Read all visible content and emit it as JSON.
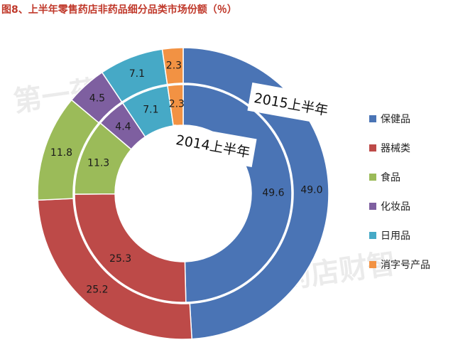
{
  "title": "图8、上半年零售药店非药品细分品类市场份额（％）",
  "watermark": "第一药店财智",
  "chart_data": {
    "type": "pie",
    "variant": "double-donut",
    "unit": "%",
    "categories": [
      "保健品",
      "器械类",
      "食品",
      "化妆品",
      "日用品",
      "消字号产品"
    ],
    "colors": [
      "#4a74b5",
      "#bd4a48",
      "#9bbb59",
      "#7e5fa0",
      "#46a9c6",
      "#f29243"
    ],
    "series": [
      {
        "name": "2015上半年",
        "ring": "outer",
        "values": [
          49.0,
          25.2,
          11.8,
          4.5,
          7.1,
          2.3
        ],
        "labels": [
          "49.0",
          "25.2",
          "11.8",
          "4.5",
          "7.1",
          "2.3"
        ]
      },
      {
        "name": "2014上半年",
        "ring": "inner",
        "values": [
          49.6,
          25.3,
          11.3,
          4.4,
          7.1,
          2.3
        ],
        "labels": [
          "49.6",
          "25.3",
          "11.3",
          "4.4",
          "7.1",
          "2.3"
        ]
      }
    ],
    "legend_position": "right"
  }
}
